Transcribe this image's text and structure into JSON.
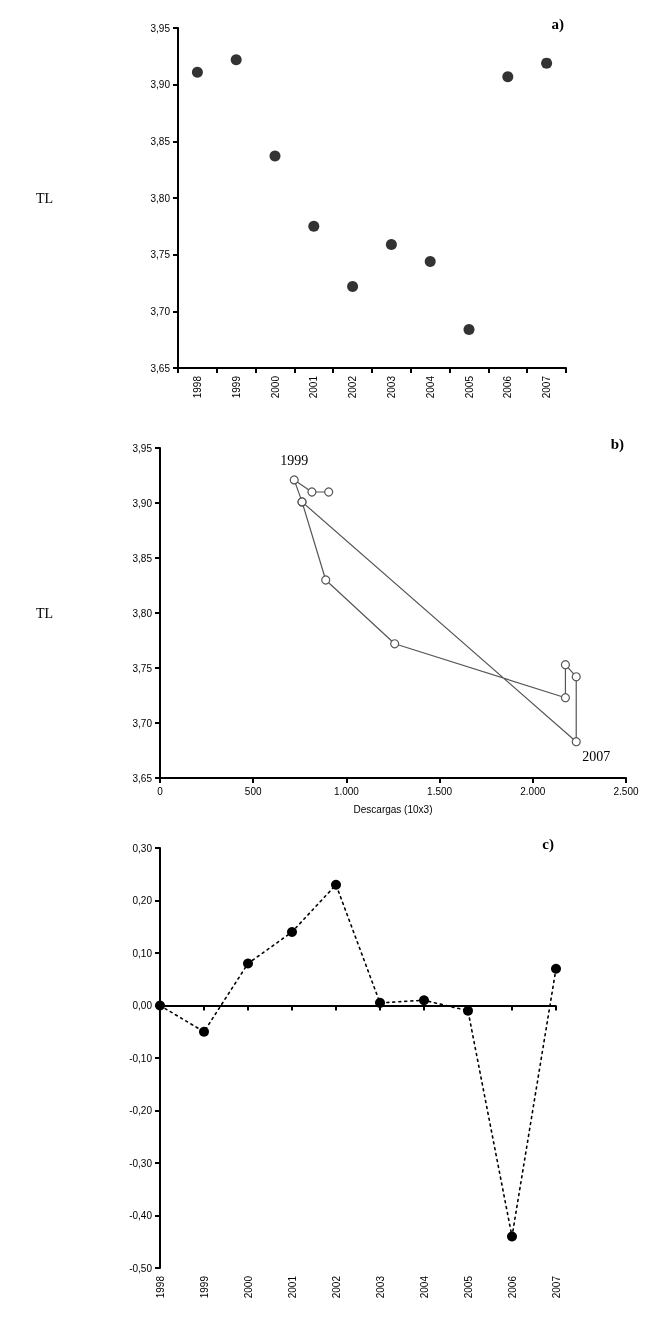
{
  "chart_data": [
    {
      "type": "scatter",
      "ylabel": "TL",
      "annotations": [
        "a)"
      ],
      "categories": [
        "1998",
        "1999",
        "2000",
        "2001",
        "2002",
        "2003",
        "2004",
        "2005",
        "2006",
        "2007"
      ],
      "series": [
        {
          "color": "#000000",
          "values": [
            3.911,
            3.922,
            3.837,
            3.775,
            3.722,
            3.759,
            3.744,
            3.684,
            3.907,
            3.919
          ]
        }
      ],
      "ylim": [
        3.65,
        3.95
      ],
      "yticks": [
        {
          "value": 3.65,
          "label": "3,65"
        },
        {
          "value": 3.7,
          "label": "3,70"
        },
        {
          "value": 3.75,
          "label": "3,75"
        },
        {
          "value": 3.8,
          "label": "3,80"
        },
        {
          "value": 3.85,
          "label": "3,85"
        },
        {
          "value": 3.9,
          "label": "3,90"
        },
        {
          "value": 3.95,
          "label": "3,95"
        }
      ],
      "marker": "circle",
      "grid": false
    },
    {
      "type": "line",
      "ylabel": "TL",
      "xlabel": "Descargas (10x3)",
      "annotations": [
        "b)",
        {
          "text": "1999",
          "x": 720,
          "y": 3.921
        },
        {
          "text": "2007",
          "x": 2233,
          "y": 3.683
        }
      ],
      "series": [
        {
          "color": "#555555",
          "x": [
            905,
            815,
            720,
            762,
            889,
            1259,
            2175,
            2175,
            2233,
            2233,
            762
          ],
          "values": [
            3.91,
            3.91,
            3.921,
            3.901,
            3.83,
            3.772,
            3.723,
            3.753,
            3.742,
            3.683,
            3.901
          ]
        }
      ],
      "xlim": [
        0,
        2500
      ],
      "xticks": [
        0,
        500,
        {
          "value": 1000,
          "label": "1.000"
        },
        {
          "value": 1500,
          "label": "1.500"
        },
        {
          "value": 2000,
          "label": "2.000"
        },
        {
          "value": 2500,
          "label": "2.500"
        }
      ],
      "ylim": [
        3.65,
        3.95
      ],
      "yticks": [
        {
          "value": 3.65,
          "label": "3,65"
        },
        {
          "value": 3.7,
          "label": "3,70"
        },
        {
          "value": 3.75,
          "label": "3,75"
        },
        {
          "value": 3.8,
          "label": "3,80"
        },
        {
          "value": 3.85,
          "label": "3,85"
        },
        {
          "value": 3.9,
          "label": "3,90"
        },
        {
          "value": 3.95,
          "label": "3,95"
        }
      ],
      "marker": "circle",
      "line_style": "solid",
      "grid": false
    },
    {
      "type": "line",
      "annotations": [
        "c)"
      ],
      "categories": [
        "1998",
        "1999",
        "2000",
        "2001",
        "2002",
        "2003",
        "2004",
        "2005",
        "2006",
        "2007"
      ],
      "series": [
        {
          "color": "#000000",
          "values": [
            0,
            -0.05,
            0.08,
            0.14,
            0.23,
            0.005,
            0.01,
            -0.01,
            -0.44,
            0.07
          ]
        }
      ],
      "ylim": [
        -0.5,
        0.3
      ],
      "yticks": [
        {
          "value": -0.5,
          "label": "-0,50"
        },
        {
          "value": -0.4,
          "label": "-0,40"
        },
        {
          "value": -0.3,
          "label": "-0,30"
        },
        {
          "value": -0.2,
          "label": "-0,20"
        },
        {
          "value": -0.1,
          "label": "-0,10"
        },
        {
          "value": 0,
          "label": "0,00"
        },
        {
          "value": 0.1,
          "label": "0,10"
        },
        {
          "value": 0.2,
          "label": "0,20"
        },
        {
          "value": 0.3,
          "label": "0,30"
        }
      ],
      "marker": "circle",
      "line_style": "dotted",
      "grid": false,
      "ref_lines": [
        {
          "axis": "y",
          "value": 0
        }
      ]
    }
  ]
}
